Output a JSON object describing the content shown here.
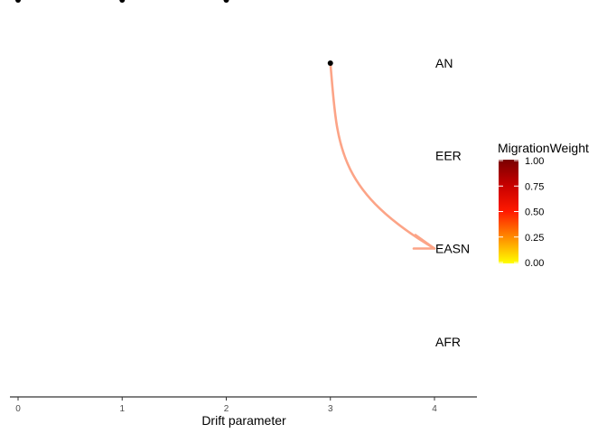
{
  "tree": {
    "axis_title": "Drift parameter",
    "x_ticks": [
      "0",
      "1",
      "2",
      "3",
      "4"
    ],
    "x_range": [
      0,
      4
    ],
    "nodes": [
      {
        "id": "root",
        "x": 0,
        "parent": null
      },
      {
        "id": "n1",
        "x": 1,
        "parent": "root"
      },
      {
        "id": "n2",
        "x": 2,
        "parent": "n1"
      },
      {
        "id": "n3",
        "x": 3,
        "parent": "n2"
      },
      {
        "id": "AN",
        "x": 4,
        "parent": "n2",
        "label": "AN"
      },
      {
        "id": "EER",
        "x": 4,
        "parent": "n2",
        "label": "EER"
      },
      {
        "id": "EASN",
        "x": 4,
        "parent": "n1",
        "label": "EASN"
      },
      {
        "id": "AFR",
        "x": 4,
        "parent": "root",
        "label": "AFR"
      }
    ],
    "tip_order": [
      "AN",
      "EER",
      "EASN",
      "AFR"
    ],
    "migration": {
      "from_node": "n3",
      "to_tip": "EASN",
      "weight": 0.5,
      "color": "#fca487"
    },
    "line_color": "#000000"
  },
  "legend": {
    "title": "MigrationWeight",
    "ticks": [
      "1.00",
      "0.75",
      "0.50",
      "0.25",
      "0.00"
    ],
    "gradient_colors": [
      "#7a0000",
      "#c80000",
      "#ff1a00",
      "#ff8c00",
      "#ffff00"
    ]
  }
}
